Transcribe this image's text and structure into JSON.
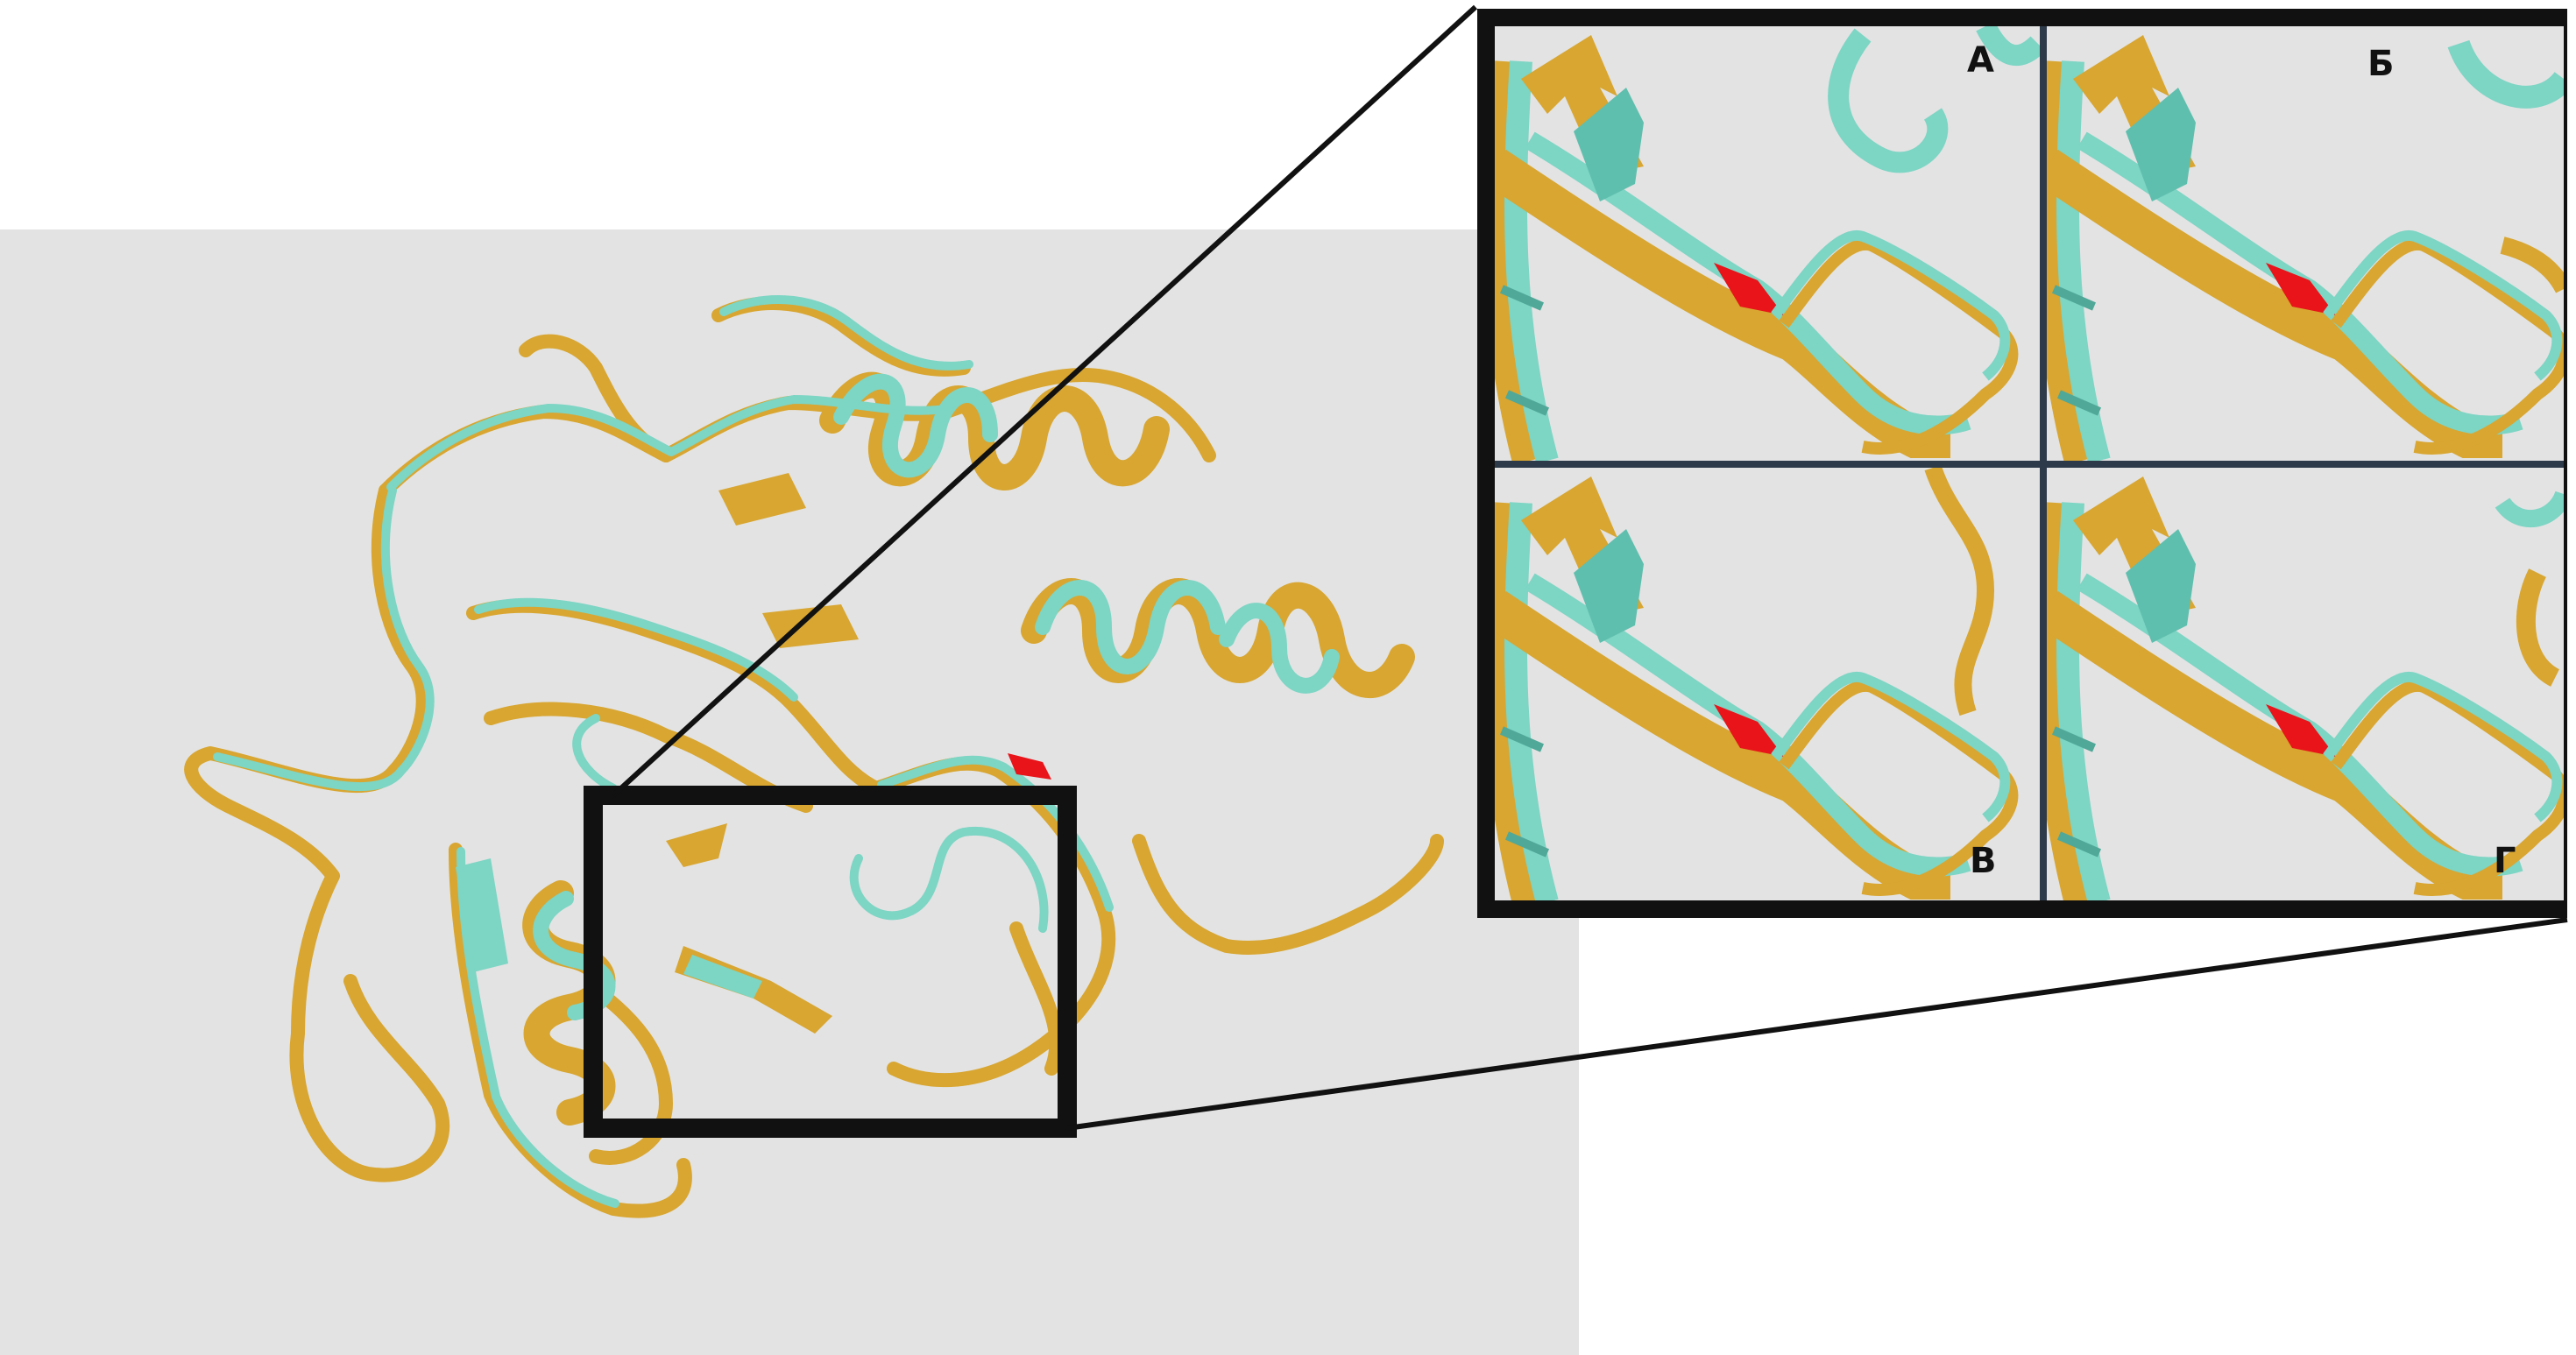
{
  "figure": {
    "panel_labels": [
      "А",
      "Б",
      "В",
      "Г"
    ],
    "colors": {
      "structure_a": "#d8a631",
      "structure_b": "#7dd5c4",
      "highlight": "#e8141a",
      "viewer_background": "#e3e3e3",
      "frame": "#111111",
      "divider": "#2d3a4a"
    },
    "overview": {
      "description_icon": "protein-ribbon-superposition",
      "zoom_box": "rectangle"
    }
  }
}
